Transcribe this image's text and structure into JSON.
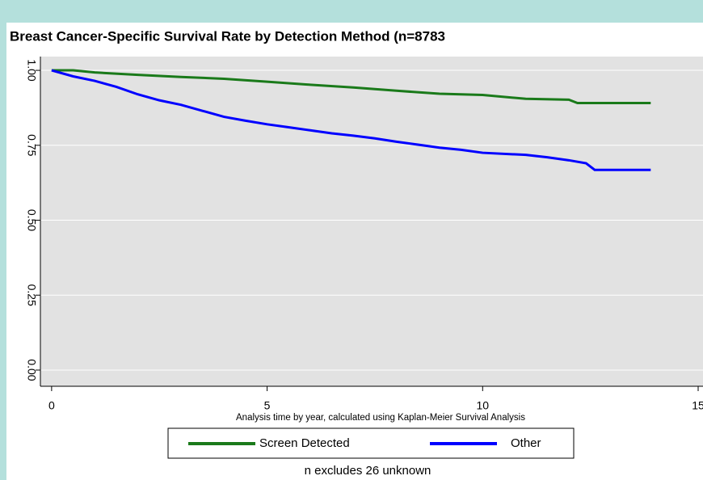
{
  "chart_data": {
    "type": "line",
    "title": "Breast Cancer-Specific Survival Rate by Detection Method (n=8783",
    "x_label": "Analysis time by year, calculated using Kaplan-Meier Survival Analysis",
    "note": "n excludes 26 unknown",
    "series": [
      {
        "name": "Screen Detected",
        "color": "#1a7a1a",
        "x": [
          0,
          0.5,
          1,
          2,
          3,
          4,
          5,
          6,
          7,
          8,
          9,
          10,
          11,
          12,
          12.2,
          13.9
        ],
        "values": [
          1.0,
          1.0,
          0.993,
          0.985,
          0.978,
          0.972,
          0.962,
          0.952,
          0.943,
          0.932,
          0.922,
          0.918,
          0.905,
          0.902,
          0.891,
          0.891
        ]
      },
      {
        "name": "Other",
        "color": "#0000ff",
        "x": [
          0,
          0.5,
          1,
          1.5,
          2,
          2.5,
          3,
          3.5,
          4,
          4.5,
          5,
          5.5,
          6,
          6.5,
          7,
          7.5,
          8,
          8.5,
          9,
          9.5,
          10,
          11,
          11.5,
          12,
          12.4,
          12.6,
          13.9
        ],
        "values": [
          1.0,
          0.98,
          0.965,
          0.945,
          0.92,
          0.9,
          0.885,
          0.865,
          0.845,
          0.832,
          0.82,
          0.81,
          0.8,
          0.79,
          0.782,
          0.773,
          0.762,
          0.752,
          0.742,
          0.735,
          0.725,
          0.718,
          0.71,
          0.7,
          0.69,
          0.668,
          0.668
        ]
      }
    ],
    "xlim": [
      -0.26,
      15.3
    ],
    "xticks": [
      0,
      5,
      10,
      15
    ],
    "ylim": [
      -0.054,
      1.046
    ],
    "yticks": [
      {
        "value": 0,
        "label": "0.00"
      },
      {
        "value": 0.25,
        "label": "0.25"
      },
      {
        "value": 0.5,
        "label": "0.50"
      },
      {
        "value": 0.75,
        "label": "0.75"
      },
      {
        "value": 1,
        "label": "1.00"
      }
    ],
    "grid": true,
    "legend": "bottom"
  }
}
